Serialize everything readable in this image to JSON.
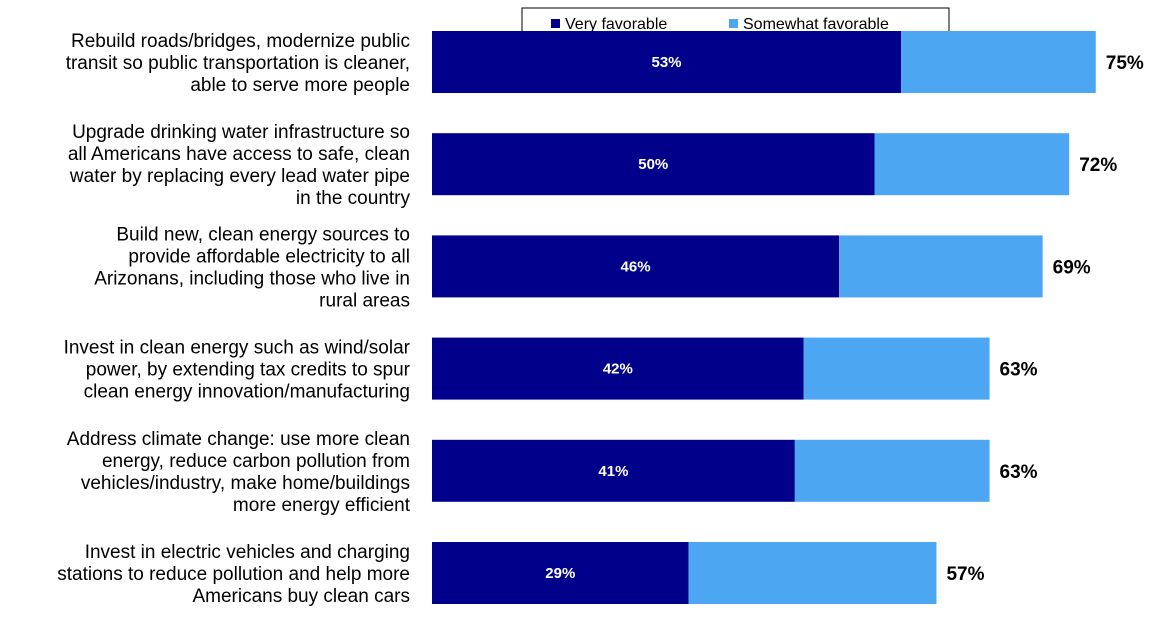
{
  "chart_data": {
    "type": "bar",
    "orientation": "horizontal",
    "stacked": true,
    "title": "",
    "xlabel": "",
    "ylabel": "",
    "xlim": [
      0,
      100
    ],
    "grid": false,
    "legend_position": "top",
    "categories": [
      "Rebuild roads/bridges, modernize public transit so public transportation is cleaner, able to serve more people",
      "Upgrade drinking water infrastructure so all Americans have access to safe, clean water by replacing every lead water pipe in the country",
      "Build new, clean energy sources to provide affordable electricity to all Arizonans, including those who live in rural areas",
      "Invest in clean energy such as wind/solar power, by extending tax credits to spur clean energy innovation/manufacturing",
      "Address climate change: use more clean energy, reduce carbon pollution from vehicles/industry, make home/buildings more energy efficient",
      "Invest in electric vehicles and charging stations to reduce pollution and help more Americans buy clean cars"
    ],
    "category_lines": [
      [
        "Rebuild roads/bridges, modernize public",
        "transit so public transportation is cleaner,",
        "able to serve more people"
      ],
      [
        "Upgrade drinking water infrastructure so",
        "all Americans have access to safe, clean",
        "water by replacing every lead water pipe",
        "in the country"
      ],
      [
        "Build new, clean energy sources to",
        "provide affordable electricity to all",
        "Arizonans, including those who live in",
        "rural areas"
      ],
      [
        "Invest in clean energy such as wind/solar",
        "power, by extending tax credits to spur",
        "clean energy innovation/manufacturing"
      ],
      [
        "Address climate change: use more clean",
        "energy, reduce carbon pollution from",
        "vehicles/industry, make home/buildings",
        "more energy efficient"
      ],
      [
        "Invest in electric vehicles and charging",
        "stations to reduce pollution and help more",
        "Americans buy clean cars"
      ]
    ],
    "series": [
      {
        "name": "Very favorable",
        "color": "#00008b",
        "values": [
          53,
          50,
          46,
          42,
          41,
          29
        ],
        "labels": [
          "53%",
          "50%",
          "46%",
          "42%",
          "41%",
          "29%"
        ]
      },
      {
        "name": "Somewhat favorable",
        "color": "#4da6f2",
        "values": [
          22,
          22,
          23,
          21,
          22,
          28
        ]
      }
    ],
    "totals": [
      75,
      72,
      69,
      63,
      63,
      57
    ],
    "total_labels": [
      "75%",
      "72%",
      "69%",
      "63%",
      "63%",
      "57%"
    ]
  }
}
